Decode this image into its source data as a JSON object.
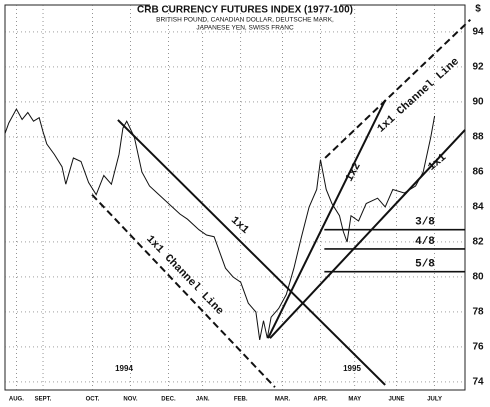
{
  "chart_data": {
    "type": "line",
    "title": "CRB CURRENCY FUTURES INDEX (1977-100)",
    "subtitle": [
      "BRITISH POUND, CANADIAN DOLLAR, DEUTSCHE MARK,",
      "JAPANESE YEN, SWISS FRANC"
    ],
    "unit_label": "$",
    "year_labels": [
      "1994",
      "1995"
    ],
    "grid": true,
    "xlim": [
      0,
      12.1
    ],
    "xticks": [
      {
        "value": 0.3,
        "label": "AUG."
      },
      {
        "value": 1.0,
        "label": "SEPT."
      },
      {
        "value": 2.3,
        "label": "OCT."
      },
      {
        "value": 3.3,
        "label": "NOV."
      },
      {
        "value": 4.3,
        "label": "DEC."
      },
      {
        "value": 5.2,
        "label": "JAN."
      },
      {
        "value": 6.2,
        "label": "FEB."
      },
      {
        "value": 7.3,
        "label": "MAR."
      },
      {
        "value": 8.3,
        "label": "APR."
      },
      {
        "value": 9.2,
        "label": "MAY"
      },
      {
        "value": 10.3,
        "label": "JUNE"
      },
      {
        "value": 11.3,
        "label": "JULY"
      }
    ],
    "ylim": [
      73.54,
      95.54
    ],
    "yticks": [
      74,
      76,
      78,
      80,
      82,
      84,
      86,
      88,
      90,
      92,
      94
    ],
    "x": [
      0.0,
      0.1,
      0.3,
      0.45,
      0.6,
      0.75,
      0.9,
      1.0,
      1.1,
      1.3,
      1.5,
      1.6,
      1.8,
      2.0,
      2.2,
      2.4,
      2.6,
      2.8,
      3.0,
      3.1,
      3.2,
      3.4,
      3.6,
      3.8,
      4.0,
      4.3,
      4.6,
      4.8,
      5.1,
      5.3,
      5.5,
      5.8,
      6.0,
      6.2,
      6.4,
      6.6,
      6.7,
      6.8,
      6.9,
      7.0,
      7.2,
      7.4,
      7.6,
      7.8,
      8.0,
      8.2,
      8.3,
      8.45,
      8.6,
      8.8,
      8.9,
      9.0,
      9.1,
      9.3,
      9.5,
      9.8,
      10.0,
      10.2,
      10.5,
      10.8,
      11.0,
      11.2,
      11.3
    ],
    "values": [
      88.2,
      88.8,
      89.6,
      89.0,
      89.4,
      88.9,
      89.1,
      88.3,
      87.6,
      87.0,
      86.3,
      85.3,
      86.8,
      86.6,
      85.4,
      84.7,
      85.8,
      85.3,
      87.0,
      88.5,
      88.9,
      88.0,
      86.0,
      85.2,
      84.8,
      84.2,
      83.6,
      83.3,
      82.7,
      82.4,
      82.3,
      80.5,
      80.0,
      79.7,
      78.5,
      78.0,
      76.4,
      77.5,
      76.5,
      77.7,
      78.2,
      79.0,
      80.5,
      82.3,
      84.0,
      85.0,
      86.7,
      85.0,
      84.2,
      83.5,
      82.6,
      82.0,
      83.5,
      83.2,
      84.2,
      84.5,
      84.0,
      85.0,
      84.8,
      85.2,
      86.0,
      88.0,
      89.2
    ],
    "color": "#111111",
    "trendlines": [
      {
        "x": [
          2.97,
          10.0
        ],
        "y": [
          88.97,
          73.83
        ],
        "dashed": false
      },
      {
        "x": [
          2.29,
          7.1
        ],
        "y": [
          84.7,
          73.7
        ],
        "dashed": true
      },
      {
        "x": [
          8.42,
          12.24
        ],
        "y": [
          86.8,
          94.7
        ],
        "dashed": true
      },
      {
        "x": [
          6.92,
          10.0
        ],
        "y": [
          76.5,
          90.1
        ],
        "dashed": false
      },
      {
        "x": [
          6.97,
          12.1
        ],
        "y": [
          76.5,
          88.4
        ],
        "dashed": false
      }
    ],
    "levels": [
      {
        "label": "3/8",
        "value": 82.7,
        "x": [
          8.4,
          12.1
        ]
      },
      {
        "label": "4/8",
        "value": 81.6,
        "x": [
          8.4,
          12.1
        ]
      },
      {
        "label": "5/8",
        "value": 80.3,
        "x": [
          8.4,
          12.1
        ]
      }
    ],
    "annotations": [
      "1x1 Channel Line",
      "1x2",
      "1x1",
      "1x1",
      "1x1 Channel Line"
    ]
  }
}
